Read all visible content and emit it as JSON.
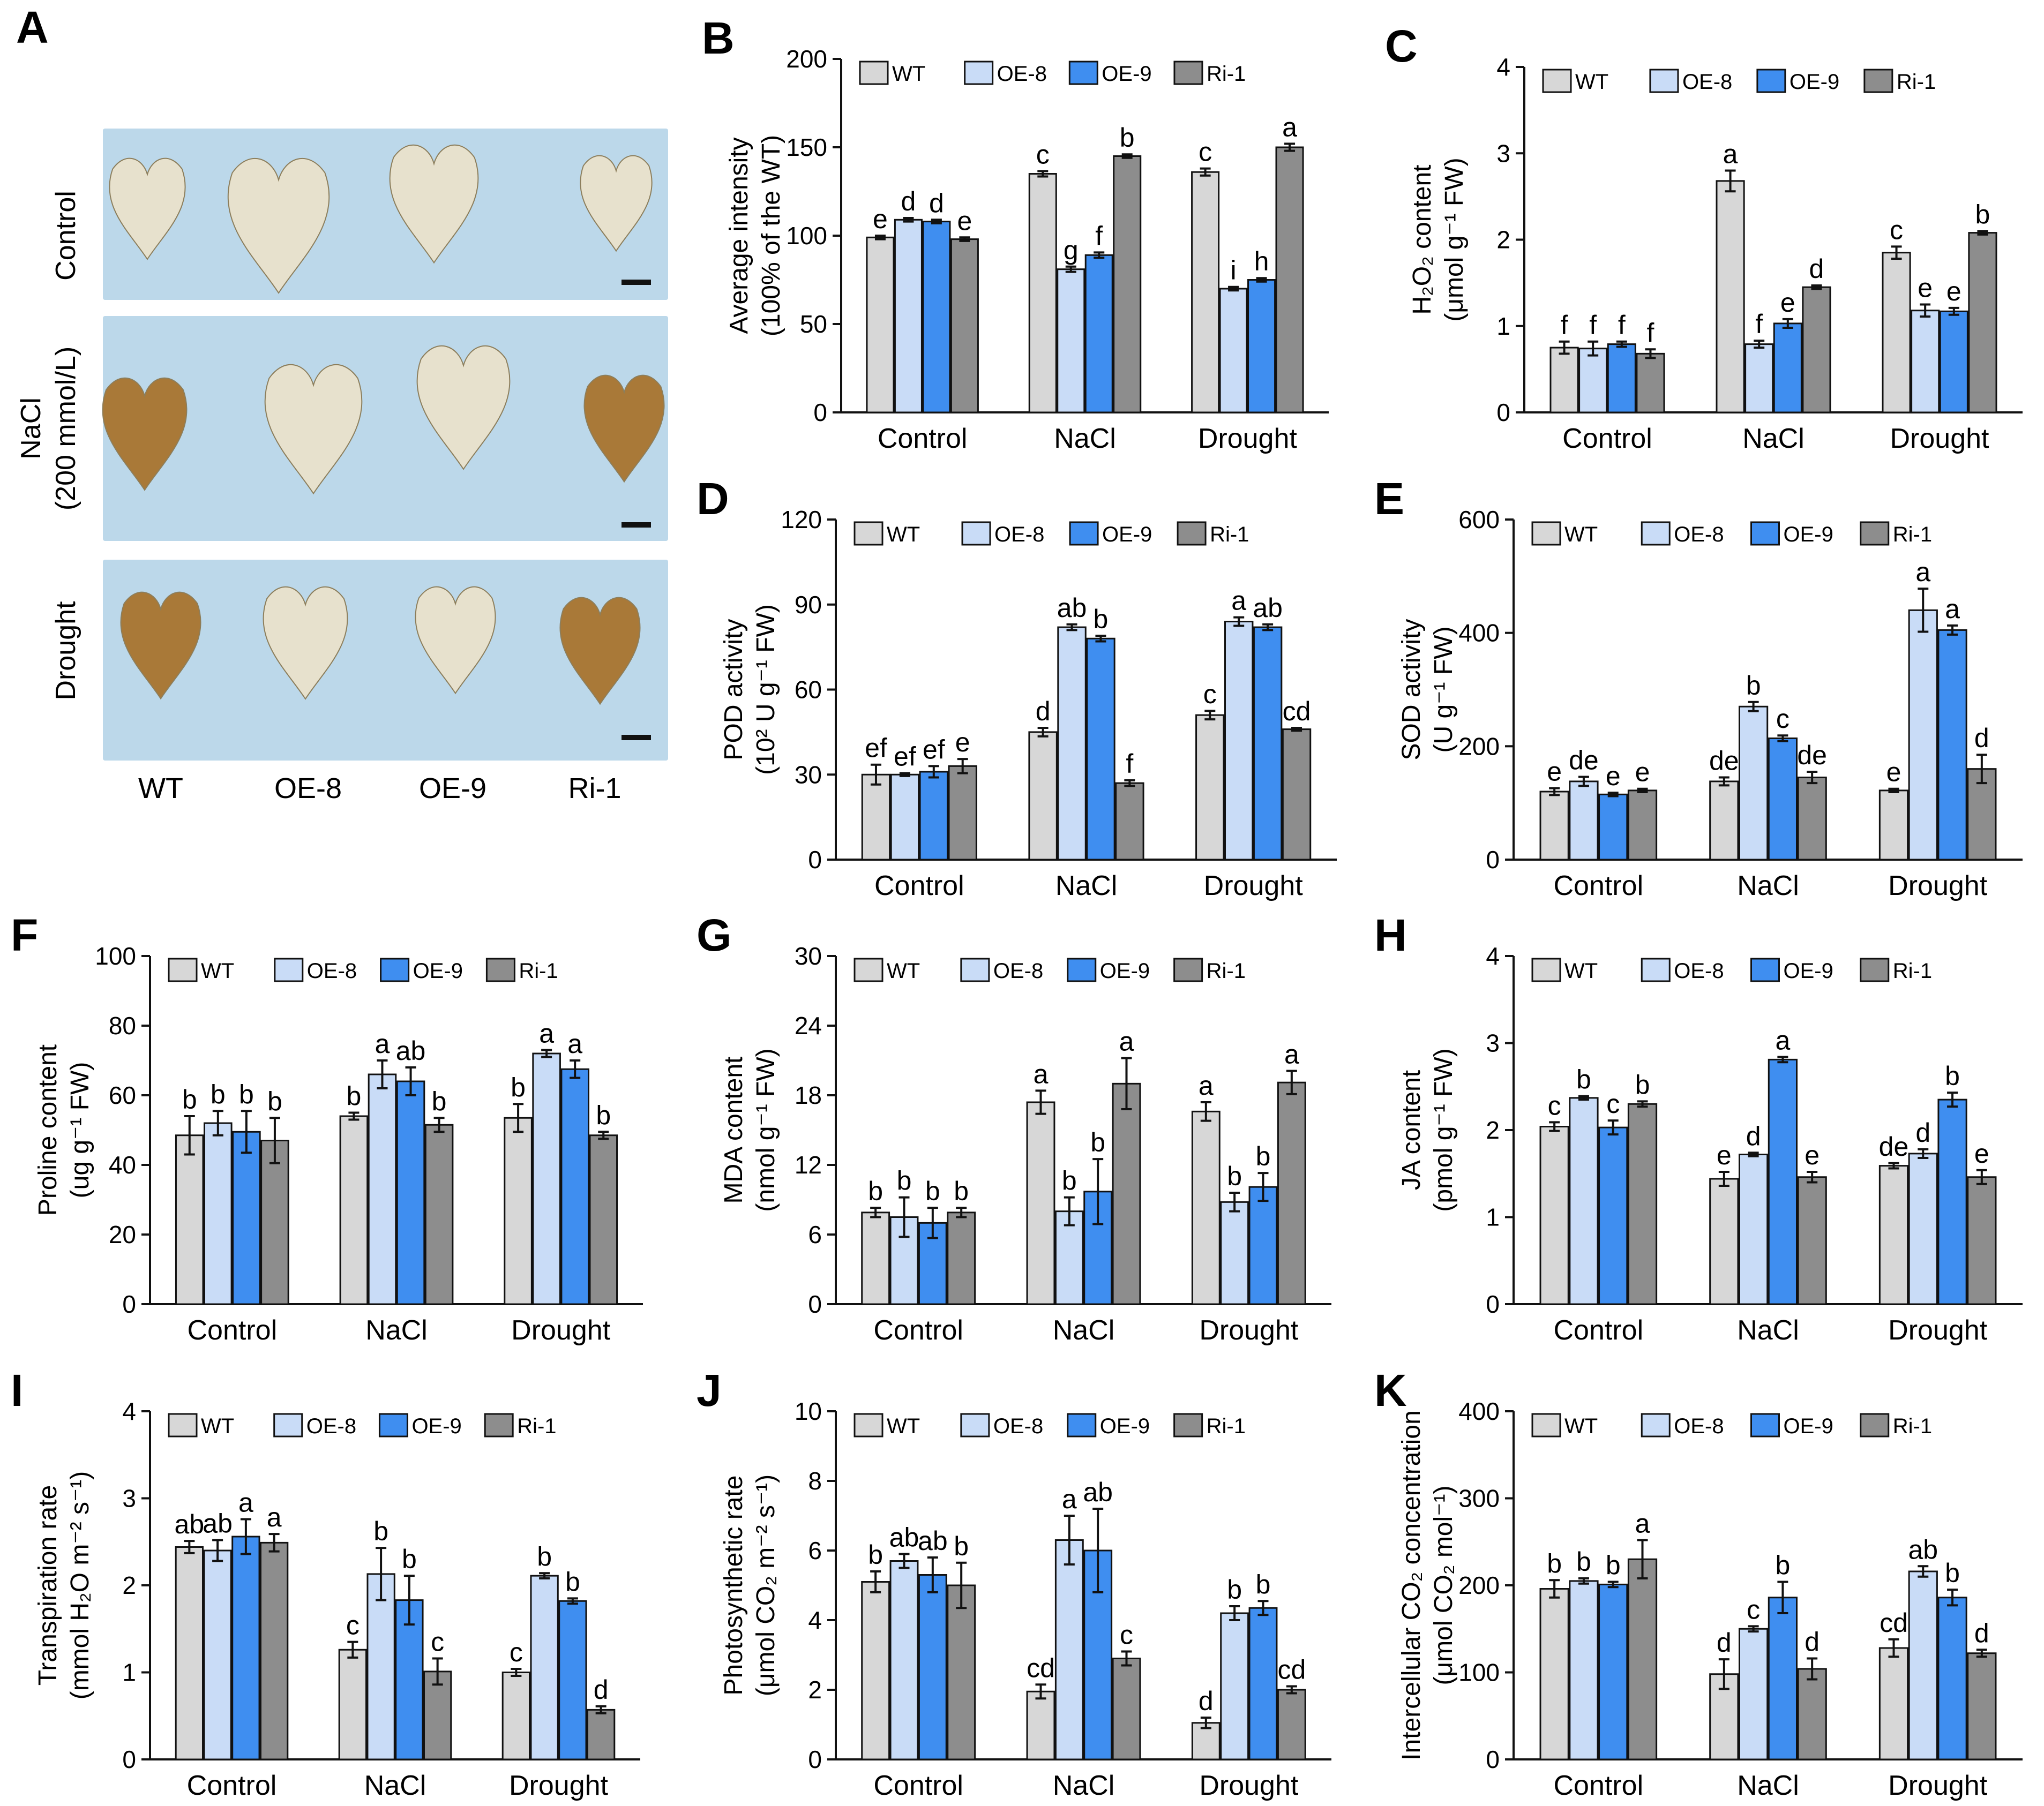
{
  "panel_a": {
    "letter": "A",
    "rows": [
      "Control",
      "NaCl",
      "Drought"
    ],
    "row_sublabel": "(200 mmol/L)",
    "columns": [
      "WT",
      "OE-8",
      "OE-9",
      "Ri-1"
    ]
  },
  "colors": {
    "WT": "#d7d7d7",
    "OE-8": "#c9dcf7",
    "OE-9": "#3f8ef0",
    "Ri-1": "#8d8d8d",
    "photo_bg": "#bcd8ea",
    "leaf_pale": "#eae2cc",
    "leaf_brown": "#a8742f"
  },
  "legend_labels": [
    "WT",
    "OE-8",
    "OE-9",
    "Ri-1"
  ],
  "group_labels": [
    "Control",
    "NaCl",
    "Drought"
  ],
  "chart_data": [
    {
      "id": "B",
      "type": "bar",
      "ylabel": [
        "Average intensity",
        "(100% of the WT)"
      ],
      "ylim": [
        0,
        200
      ],
      "yticks": [
        0,
        50,
        100,
        150,
        200
      ],
      "categories": [
        "Control",
        "NaCl",
        "Drought"
      ],
      "series": [
        {
          "name": "WT",
          "values": [
            99,
            135,
            136
          ],
          "errors": [
            1,
            1.5,
            2
          ],
          "letters": [
            "e",
            "c",
            "c"
          ]
        },
        {
          "name": "OE-8",
          "values": [
            109,
            81,
            70
          ],
          "errors": [
            1,
            1.5,
            1
          ],
          "letters": [
            "d",
            "g",
            "i"
          ]
        },
        {
          "name": "OE-9",
          "values": [
            108,
            89,
            75
          ],
          "errors": [
            1,
            1.5,
            1
          ],
          "letters": [
            "d",
            "f",
            "h"
          ]
        },
        {
          "name": "Ri-1",
          "values": [
            98,
            145,
            150
          ],
          "errors": [
            1,
            1,
            2
          ],
          "letters": [
            "e",
            "b",
            "a"
          ]
        }
      ]
    },
    {
      "id": "C",
      "type": "bar",
      "ylabel": [
        "H₂O₂ content",
        "(μmol g⁻¹ FW)"
      ],
      "ylim": [
        0,
        4
      ],
      "yticks": [
        0,
        1,
        2,
        3,
        4
      ],
      "categories": [
        "Control",
        "NaCl",
        "Drought"
      ],
      "series": [
        {
          "name": "WT",
          "values": [
            0.75,
            2.68,
            1.85
          ],
          "errors": [
            0.07,
            0.12,
            0.07
          ],
          "letters": [
            "f",
            "a",
            "c"
          ]
        },
        {
          "name": "OE-8",
          "values": [
            0.74,
            0.79,
            1.18
          ],
          "errors": [
            0.08,
            0.04,
            0.07
          ],
          "letters": [
            "f",
            "f",
            "e"
          ]
        },
        {
          "name": "OE-9",
          "values": [
            0.79,
            1.03,
            1.17
          ],
          "errors": [
            0.03,
            0.05,
            0.04
          ],
          "letters": [
            "f",
            "e",
            "e"
          ]
        },
        {
          "name": "Ri-1",
          "values": [
            0.68,
            1.45,
            2.08
          ],
          "errors": [
            0.05,
            0.02,
            0.02
          ],
          "letters": [
            "f",
            "d",
            "b"
          ]
        }
      ]
    },
    {
      "id": "D",
      "type": "bar",
      "ylabel": [
        "POD activity",
        "(10² U g⁻¹ FW)"
      ],
      "ylim": [
        0,
        120
      ],
      "yticks": [
        0,
        30,
        60,
        90,
        120
      ],
      "categories": [
        "Control",
        "NaCl",
        "Drought"
      ],
      "series": [
        {
          "name": "WT",
          "values": [
            30,
            45,
            51
          ],
          "errors": [
            3.5,
            1.5,
            1.5
          ],
          "letters": [
            "ef",
            "d",
            "c"
          ]
        },
        {
          "name": "OE-8",
          "values": [
            30,
            82,
            84
          ],
          "errors": [
            0.5,
            1,
            1.5
          ],
          "letters": [
            "ef",
            "ab",
            "a"
          ]
        },
        {
          "name": "OE-9",
          "values": [
            31,
            78,
            82
          ],
          "errors": [
            2,
            1,
            1
          ],
          "letters": [
            "ef",
            "b",
            "ab"
          ]
        },
        {
          "name": "Ri-1",
          "values": [
            33,
            27,
            46
          ],
          "errors": [
            2.5,
            1,
            0.5
          ],
          "letters": [
            "e",
            "f",
            "cd"
          ]
        }
      ]
    },
    {
      "id": "E",
      "type": "bar",
      "ylabel": [
        "SOD activity",
        "(U g⁻¹ FW)"
      ],
      "ylim": [
        0,
        600
      ],
      "yticks": [
        0,
        200,
        400,
        600
      ],
      "categories": [
        "Control",
        "NaCl",
        "Drought"
      ],
      "series": [
        {
          "name": "WT",
          "values": [
            120,
            138,
            122
          ],
          "errors": [
            6,
            7,
            3
          ],
          "letters": [
            "e",
            "de",
            "e"
          ]
        },
        {
          "name": "OE-8",
          "values": [
            138,
            270,
            440
          ],
          "errors": [
            8,
            8,
            38
          ],
          "letters": [
            "de",
            "b",
            "a"
          ]
        },
        {
          "name": "OE-9",
          "values": [
            115,
            214,
            405
          ],
          "errors": [
            3,
            5,
            8
          ],
          "letters": [
            "e",
            "c",
            "a"
          ]
        },
        {
          "name": "Ri-1",
          "values": [
            122,
            145,
            160
          ],
          "errors": [
            3,
            10,
            25
          ],
          "letters": [
            "e",
            "de",
            "d"
          ]
        }
      ]
    },
    {
      "id": "F",
      "type": "bar",
      "ylabel": [
        "Proline content",
        "(ug g⁻¹ FW)"
      ],
      "ylim": [
        0,
        100
      ],
      "yticks": [
        0,
        20,
        40,
        60,
        80,
        100
      ],
      "categories": [
        "Control",
        "NaCl",
        "Drought"
      ],
      "series": [
        {
          "name": "WT",
          "values": [
            48.5,
            54,
            53.5
          ],
          "errors": [
            5.5,
            1,
            4
          ],
          "letters": [
            "b",
            "b",
            "b"
          ]
        },
        {
          "name": "OE-8",
          "values": [
            52,
            66,
            72
          ],
          "errors": [
            3.5,
            4,
            1
          ],
          "letters": [
            "b",
            "a",
            "a"
          ]
        },
        {
          "name": "OE-9",
          "values": [
            49.5,
            64,
            67.5
          ],
          "errors": [
            6,
            4,
            2.5
          ],
          "letters": [
            "b",
            "ab",
            "a"
          ]
        },
        {
          "name": "Ri-1",
          "values": [
            47,
            51.5,
            48.5
          ],
          "errors": [
            6.5,
            2,
            1
          ],
          "letters": [
            "b",
            "b",
            "b"
          ]
        }
      ]
    },
    {
      "id": "G",
      "type": "bar",
      "ylabel": [
        "MDA content",
        "(nmol g⁻¹ FW)"
      ],
      "ylim": [
        0,
        30
      ],
      "yticks": [
        0,
        6,
        12,
        18,
        24,
        30
      ],
      "categories": [
        "Control",
        "NaCl",
        "Drought"
      ],
      "series": [
        {
          "name": "WT",
          "values": [
            7.9,
            17.4,
            16.6
          ],
          "errors": [
            0.4,
            1,
            0.8
          ],
          "letters": [
            "b",
            "a",
            "a"
          ]
        },
        {
          "name": "OE-8",
          "values": [
            7.5,
            8,
            8.8
          ],
          "errors": [
            1.7,
            1.2,
            0.8
          ],
          "letters": [
            "b",
            "b",
            "b"
          ]
        },
        {
          "name": "OE-9",
          "values": [
            7,
            9.7,
            10.1
          ],
          "errors": [
            1.3,
            2.8,
            1.2
          ],
          "letters": [
            "b",
            "b",
            "b"
          ]
        },
        {
          "name": "Ri-1",
          "values": [
            7.9,
            19,
            19.1
          ],
          "errors": [
            0.4,
            2.2,
            1
          ],
          "letters": [
            "b",
            "a",
            "a"
          ]
        }
      ]
    },
    {
      "id": "H",
      "type": "bar",
      "ylabel": [
        "JA content",
        "(pmol g⁻¹ FW)"
      ],
      "ylim": [
        0,
        4
      ],
      "yticks": [
        0,
        1,
        2,
        3,
        4
      ],
      "categories": [
        "Control",
        "NaCl",
        "Drought"
      ],
      "series": [
        {
          "name": "WT",
          "values": [
            2.04,
            1.44,
            1.59
          ],
          "errors": [
            0.05,
            0.08,
            0.03
          ],
          "letters": [
            "c",
            "e",
            "de"
          ]
        },
        {
          "name": "OE-8",
          "values": [
            2.37,
            1.72,
            1.73
          ],
          "errors": [
            0.02,
            0.02,
            0.05
          ],
          "letters": [
            "b",
            "d",
            "d"
          ]
        },
        {
          "name": "OE-9",
          "values": [
            2.03,
            2.81,
            2.35
          ],
          "errors": [
            0.08,
            0.03,
            0.08
          ],
          "letters": [
            "c",
            "a",
            "b"
          ]
        },
        {
          "name": "Ri-1",
          "values": [
            2.3,
            1.46,
            1.46
          ],
          "errors": [
            0.03,
            0.06,
            0.08
          ],
          "letters": [
            "b",
            "e",
            "e"
          ]
        }
      ]
    },
    {
      "id": "I",
      "type": "bar",
      "ylabel": [
        "Transpiration rate",
        "(mmol H₂O m⁻² s⁻¹)"
      ],
      "ylim": [
        0,
        4
      ],
      "yticks": [
        0,
        1,
        2,
        3,
        4
      ],
      "categories": [
        "Control",
        "NaCl",
        "Drought"
      ],
      "series": [
        {
          "name": "WT",
          "values": [
            2.44,
            1.26,
            1.0
          ],
          "errors": [
            0.07,
            0.09,
            0.04
          ],
          "letters": [
            "ab",
            "c",
            "c"
          ]
        },
        {
          "name": "OE-8",
          "values": [
            2.4,
            2.13,
            2.11
          ],
          "errors": [
            0.12,
            0.3,
            0.03
          ],
          "letters": [
            "ab",
            "b",
            "b"
          ]
        },
        {
          "name": "OE-9",
          "values": [
            2.56,
            1.83,
            1.82
          ],
          "errors": [
            0.2,
            0.28,
            0.03
          ],
          "letters": [
            "a",
            "b",
            "b"
          ]
        },
        {
          "name": "Ri-1",
          "values": [
            2.49,
            1.01,
            0.57
          ],
          "errors": [
            0.1,
            0.15,
            0.04
          ],
          "letters": [
            "a",
            "c",
            "d"
          ]
        }
      ]
    },
    {
      "id": "J",
      "type": "bar",
      "ylabel": [
        "Photosynthetic rate",
        "(μmol CO₂ m⁻² s⁻¹)"
      ],
      "ylim": [
        0,
        10
      ],
      "yticks": [
        0,
        2,
        4,
        6,
        8,
        10
      ],
      "categories": [
        "Control",
        "NaCl",
        "Drought"
      ],
      "series": [
        {
          "name": "WT",
          "values": [
            5.1,
            1.95,
            1.05
          ],
          "errors": [
            0.3,
            0.2,
            0.15
          ],
          "letters": [
            "b",
            "cd",
            "d"
          ]
        },
        {
          "name": "OE-8",
          "values": [
            5.7,
            6.3,
            4.2
          ],
          "errors": [
            0.2,
            0.7,
            0.2
          ],
          "letters": [
            "ab",
            "a",
            "b"
          ]
        },
        {
          "name": "OE-9",
          "values": [
            5.3,
            6.0,
            4.35
          ],
          "errors": [
            0.5,
            1.2,
            0.2
          ],
          "letters": [
            "ab",
            "ab",
            "b"
          ]
        },
        {
          "name": "Ri-1",
          "values": [
            5.0,
            2.9,
            2.0
          ],
          "errors": [
            0.65,
            0.2,
            0.1
          ],
          "letters": [
            "b",
            "c",
            "cd"
          ]
        }
      ]
    },
    {
      "id": "K",
      "type": "bar",
      "ylabel": [
        "Intercellular CO₂ concentration",
        "(μmol CO₂ mol⁻¹)"
      ],
      "ylim": [
        0,
        400
      ],
      "yticks": [
        0,
        100,
        200,
        300,
        400
      ],
      "categories": [
        "Control",
        "NaCl",
        "Drought"
      ],
      "series": [
        {
          "name": "WT",
          "values": [
            196,
            98,
            128
          ],
          "errors": [
            10,
            17,
            10
          ],
          "letters": [
            "b",
            "d",
            "cd"
          ]
        },
        {
          "name": "OE-8",
          "values": [
            205,
            150,
            216
          ],
          "errors": [
            3,
            3,
            6
          ],
          "letters": [
            "b",
            "c",
            "ab"
          ]
        },
        {
          "name": "OE-9",
          "values": [
            201,
            186,
            186
          ],
          "errors": [
            3,
            18,
            9
          ],
          "letters": [
            "b",
            "b",
            "b"
          ]
        },
        {
          "name": "Ri-1",
          "values": [
            230,
            104,
            122
          ],
          "errors": [
            22,
            12,
            4
          ],
          "letters": [
            "a",
            "d",
            "d"
          ]
        }
      ]
    }
  ]
}
